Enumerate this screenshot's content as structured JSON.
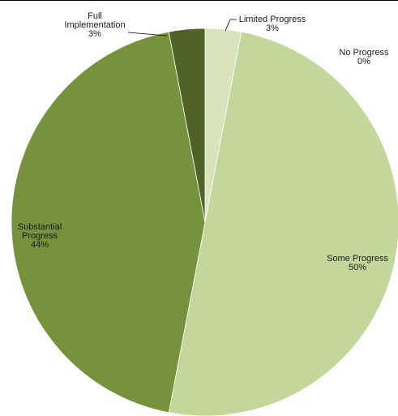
{
  "chart_data": {
    "type": "pie",
    "title": "",
    "slices": [
      {
        "name": "Limited Progress",
        "label_lines": [
          "Limited Progress",
          "3%"
        ],
        "value": 3,
        "color": "#d8e4bc"
      },
      {
        "name": "No Progress",
        "label_lines": [
          "No Progress",
          "0%"
        ],
        "value": 0,
        "color": "#eef3df"
      },
      {
        "name": "Some Progress",
        "label_lines": [
          "Some Progress",
          "50%"
        ],
        "value": 50,
        "color": "#c4d79b"
      },
      {
        "name": "Substantial Progress",
        "label_lines": [
          "Substantial",
          "Progress",
          "44%"
        ],
        "value": 44,
        "color": "#76923c"
      },
      {
        "name": "Full Implementation",
        "label_lines": [
          "Full",
          "Implementation",
          "3%"
        ],
        "value": 3,
        "color": "#4f6228"
      }
    ],
    "start_angle": "12 o'clock",
    "direction": "clockwise",
    "legend": "none (data labels on slices)"
  }
}
